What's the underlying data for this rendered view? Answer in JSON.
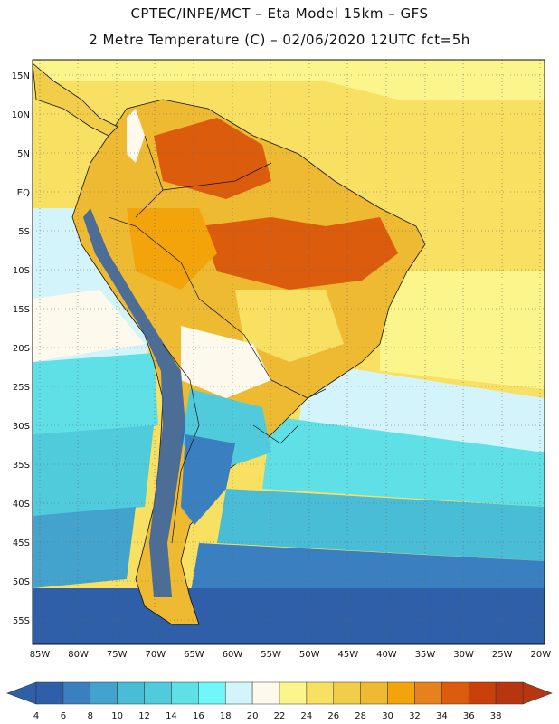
{
  "title": {
    "line1": "CPTEC/INPE/MCT –  Eta Model 15km – GFS",
    "line2": "2 Metre Temperature (C) – 02/06/2020 12UTC fct=5h"
  },
  "axes": {
    "lat_labels": [
      "15N",
      "10N",
      "5N",
      "EQ",
      "5S",
      "10S",
      "15S",
      "20S",
      "25S",
      "30S",
      "35S",
      "40S",
      "45S",
      "50S",
      "55S"
    ],
    "lon_labels": [
      "85W",
      "80W",
      "75W",
      "70W",
      "65W",
      "60W",
      "55W",
      "50W",
      "45W",
      "40W",
      "35W",
      "30W",
      "25W",
      "20W"
    ]
  },
  "colorbar": {
    "ticks": [
      "4",
      "6",
      "8",
      "10",
      "12",
      "14",
      "16",
      "18",
      "20",
      "22",
      "24",
      "26",
      "28",
      "30",
      "32",
      "34",
      "36",
      "38"
    ],
    "colors": [
      "#2e5fa8",
      "#3a7fc0",
      "#43a3cc",
      "#49bcd6",
      "#4fcbdc",
      "#5fe0e6",
      "#70f7f9",
      "#d3f4fb",
      "#fdf9ec",
      "#fbf58c",
      "#f7e062",
      "#f2cd4a",
      "#eeba32",
      "#f2a40a",
      "#e6811e",
      "#dc5c0e",
      "#c9400a",
      "#b8360f"
    ]
  },
  "colors": {
    "ocean_warm": "#f2cd4a",
    "ocean_cool": "#4fcbdc",
    "ocean_cold": "#2e5fa8",
    "land_hot": "#dc5c0e",
    "andes": "#2e5fa8"
  }
}
